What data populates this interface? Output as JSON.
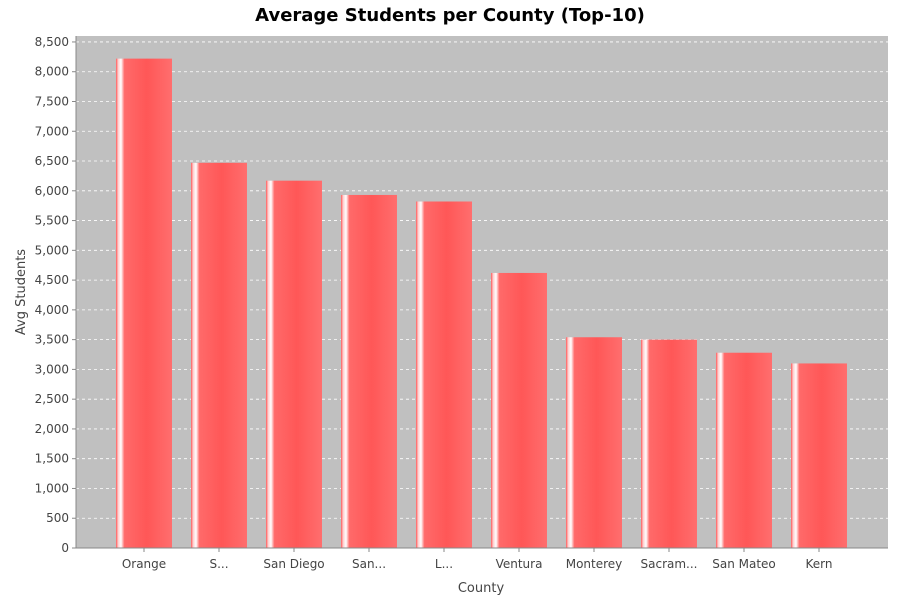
{
  "chart_data": {
    "type": "bar",
    "title": "Average Students per County (Top-10)",
    "xlabel": "County",
    "ylabel": "Avg Students",
    "categories": [
      "Orange",
      "S...",
      "San Diego",
      "San...",
      "L...",
      "Ventura",
      "Monterey",
      "Sacram...",
      "San Mateo",
      "Kern"
    ],
    "values": [
      8220,
      6470,
      6170,
      5930,
      5820,
      4620,
      3540,
      3500,
      3280,
      3100
    ],
    "ylim": [
      0,
      8600
    ],
    "yticks": [
      0,
      500,
      1000,
      1500,
      2000,
      2500,
      3000,
      3500,
      4000,
      4500,
      5000,
      5500,
      6000,
      6500,
      7000,
      7500,
      8000,
      8500
    ],
    "ytick_labels": [
      "0",
      "500",
      "1,000",
      "1,500",
      "2,000",
      "2,500",
      "3,000",
      "3,500",
      "4,000",
      "4,500",
      "5,000",
      "5,500",
      "6,000",
      "6,500",
      "7,000",
      "7,500",
      "8,000",
      "8,500"
    ],
    "grid": true,
    "colors": {
      "plot_background": "#c0c0c0",
      "bar": "#ff5555",
      "grid": "#ffffff"
    }
  }
}
